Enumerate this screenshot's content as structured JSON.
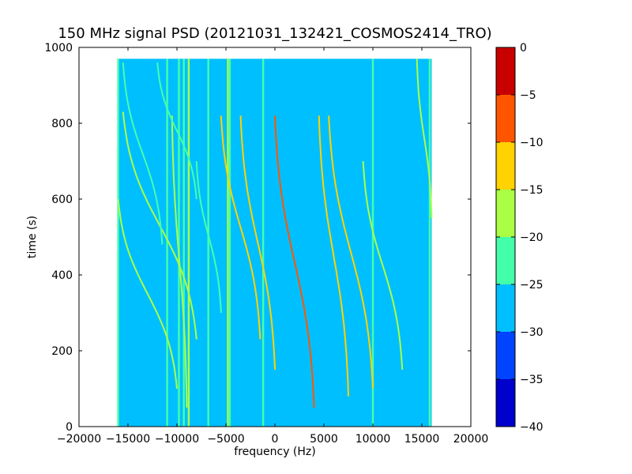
{
  "chart_data": {
    "type": "heatmap",
    "title": "150 MHz signal PSD (20121031_132421_COSMOS2414_TRO)",
    "xlabel": "frequency (Hz)",
    "ylabel": "time (s)",
    "xlim": [
      -20000,
      20000
    ],
    "ylim": [
      0,
      1000
    ],
    "x_ticks": [
      -20000,
      -15000,
      -10000,
      -5000,
      0,
      5000,
      10000,
      15000,
      20000
    ],
    "y_ticks": [
      0,
      200,
      400,
      600,
      800,
      1000
    ],
    "data_extent": {
      "x": [
        -16000,
        16000
      ],
      "y": [
        0,
        970
      ]
    },
    "background_level": -27.5,
    "colorbar": {
      "range": [
        -40,
        0
      ],
      "ticks": [
        0,
        -5,
        -10,
        -15,
        -20,
        -25,
        -30,
        -35,
        -40
      ],
      "bands": [
        {
          "from": -40,
          "to": -35,
          "color": "#0000cd"
        },
        {
          "from": -35,
          "to": -30,
          "color": "#0044ff"
        },
        {
          "from": -30,
          "to": -25,
          "color": "#00bfff"
        },
        {
          "from": -25,
          "to": -20,
          "color": "#44ffaa"
        },
        {
          "from": -20,
          "to": -15,
          "color": "#aaff44"
        },
        {
          "from": -15,
          "to": -10,
          "color": "#ffd200"
        },
        {
          "from": -10,
          "to": -5,
          "color": "#ff5500"
        },
        {
          "from": -5,
          "to": 0,
          "color": "#c80000"
        }
      ]
    },
    "vertical_features": [
      {
        "x": -16000,
        "level": -22
      },
      {
        "x": -11000,
        "level": -22
      },
      {
        "x": -9800,
        "level": -22
      },
      {
        "x": -9300,
        "level": -22
      },
      {
        "x": -8800,
        "level": -17
      },
      {
        "x": -6800,
        "level": -22
      },
      {
        "x": -4800,
        "level": -17
      },
      {
        "x": -4600,
        "level": -22
      },
      {
        "x": -1200,
        "level": -22
      },
      {
        "x": 10000,
        "level": -22
      },
      {
        "x": 15800,
        "level": -22
      }
    ],
    "doppler_tracks": [
      {
        "x0": -16000,
        "x1": -10000,
        "y_top": 600,
        "y_bottom": 100,
        "level": -17
      },
      {
        "x0": -15500,
        "x1": -8000,
        "y_top": 830,
        "y_bottom": 230,
        "level": -17
      },
      {
        "x0": -15500,
        "x1": -11500,
        "y_top": 960,
        "y_bottom": 480,
        "level": -22
      },
      {
        "x0": -10500,
        "x1": -9000,
        "y_top": 820,
        "y_bottom": 50,
        "level": -17
      },
      {
        "x0": -5500,
        "x1": -1500,
        "y_top": 820,
        "y_bottom": 230,
        "level": -12
      },
      {
        "x0": -3500,
        "x1": 0,
        "y_top": 820,
        "y_bottom": 150,
        "level": -12
      },
      {
        "x0": 0,
        "x1": 4000,
        "y_top": 820,
        "y_bottom": 50,
        "level": -7
      },
      {
        "x0": 4500,
        "x1": 7500,
        "y_top": 820,
        "y_bottom": 80,
        "level": -12
      },
      {
        "x0": 5500,
        "x1": 10000,
        "y_top": 820,
        "y_bottom": 100,
        "level": -12
      },
      {
        "x0": 9000,
        "x1": 13000,
        "y_top": 700,
        "y_bottom": 150,
        "level": -17
      },
      {
        "x0": 14500,
        "x1": 16000,
        "y_top": 970,
        "y_bottom": 550,
        "level": -17
      },
      {
        "x0": -12000,
        "x1": -8000,
        "y_top": 960,
        "y_bottom": 600,
        "level": -22
      },
      {
        "x0": -8000,
        "x1": -5500,
        "y_top": 700,
        "y_bottom": 300,
        "level": -22
      }
    ]
  }
}
